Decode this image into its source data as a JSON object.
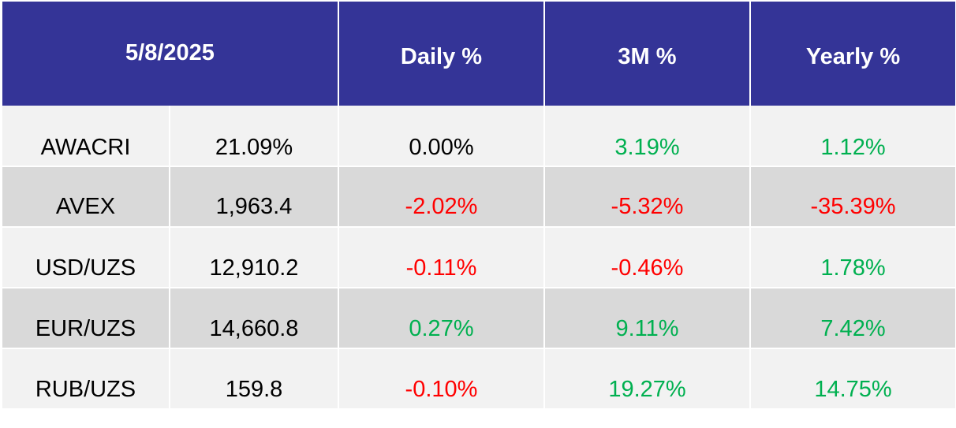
{
  "header": {
    "date": "5/8/2025",
    "daily": "Daily %",
    "three_month": "3M %",
    "yearly": "Yearly %"
  },
  "colors": {
    "header_bg": "#343497",
    "positive": "#00b050",
    "negative": "#ff0000",
    "row_light": "#f2f2f2",
    "row_dark": "#d9d9d9"
  },
  "rows": [
    {
      "name": "AWACRI",
      "value": "21.09%",
      "daily": "0.00%",
      "daily_sign": "neu",
      "three_month": "3.19%",
      "three_month_sign": "pos",
      "yearly": "1.12%",
      "yearly_sign": "pos"
    },
    {
      "name": "AVEX",
      "value": "1,963.4",
      "daily": "-2.02%",
      "daily_sign": "neg",
      "three_month": "-5.32%",
      "three_month_sign": "neg",
      "yearly": "-35.39%",
      "yearly_sign": "neg"
    },
    {
      "name": "USD/UZS",
      "value": "12,910.2",
      "daily": "-0.11%",
      "daily_sign": "neg",
      "three_month": "-0.46%",
      "three_month_sign": "neg",
      "yearly": "1.78%",
      "yearly_sign": "pos"
    },
    {
      "name": "EUR/UZS",
      "value": "14,660.8",
      "daily": "0.27%",
      "daily_sign": "pos",
      "three_month": "9.11%",
      "three_month_sign": "pos",
      "yearly": "7.42%",
      "yearly_sign": "pos"
    },
    {
      "name": "RUB/UZS",
      "value": "159.8",
      "daily": "-0.10%",
      "daily_sign": "neg",
      "three_month": "19.27%",
      "three_month_sign": "pos",
      "yearly": "14.75%",
      "yearly_sign": "pos"
    }
  ]
}
